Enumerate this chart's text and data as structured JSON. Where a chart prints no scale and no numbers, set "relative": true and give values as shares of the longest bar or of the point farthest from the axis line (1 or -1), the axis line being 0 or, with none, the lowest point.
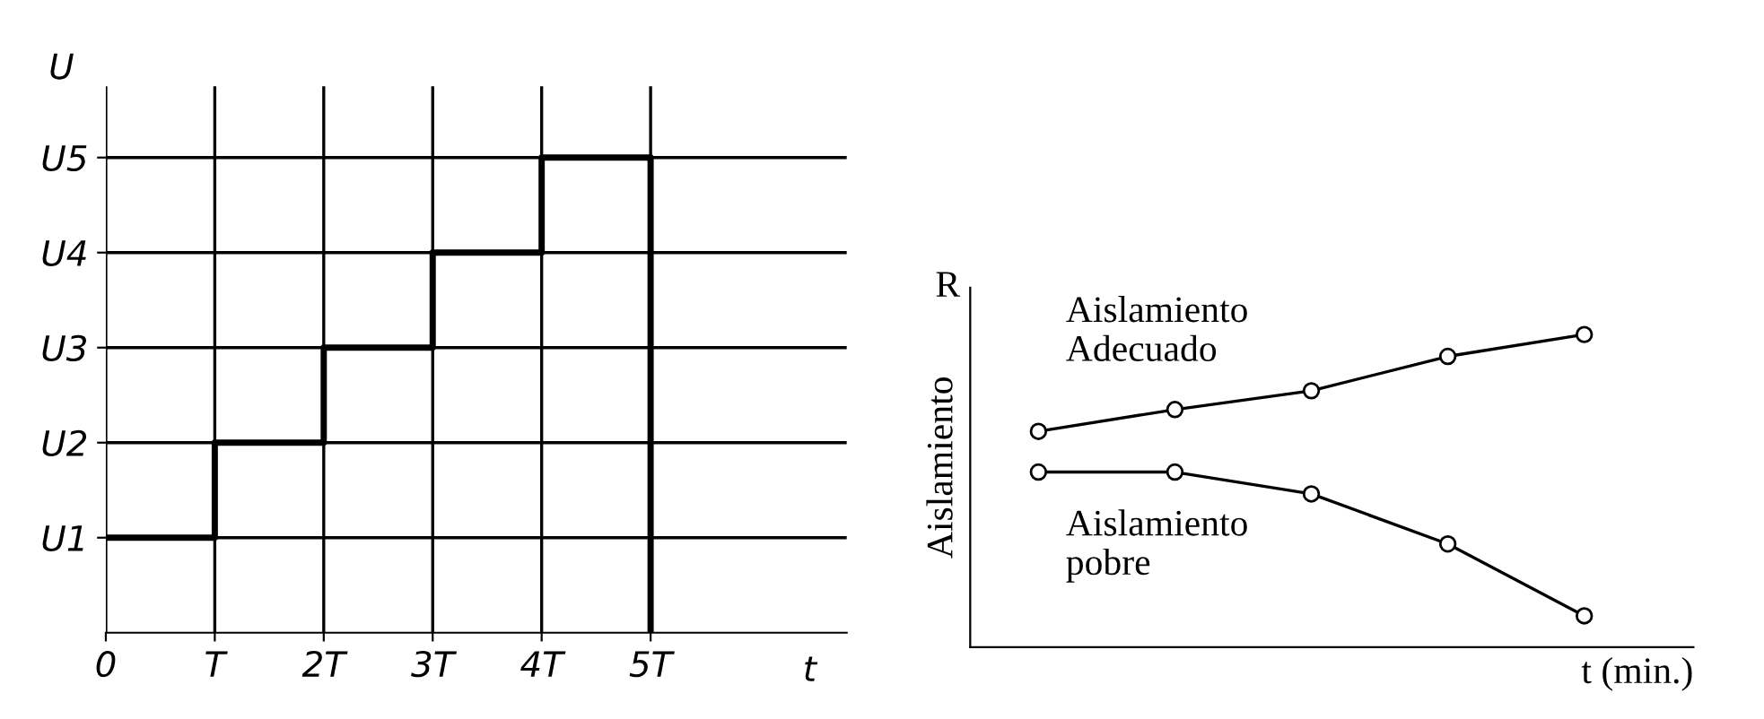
{
  "chart_data": [
    {
      "type": "step",
      "relative": true,
      "xlabel": "t",
      "ylabel": "U",
      "annotations": [
        "U1",
        "U2",
        "U3",
        "U4",
        "U5"
      ],
      "categories": [
        "0",
        "T",
        "2T",
        "3T",
        "4T",
        "5T"
      ],
      "series": [
        {
          "color": "#000000",
          "values": [
            0.2,
            0.4,
            0.6,
            0.8,
            1,
            0
          ]
        }
      ],
      "grid": true,
      "legend": false,
      "marker": "none",
      "line_style": "solid"
    },
    {
      "type": "line",
      "relative": true,
      "xlabel": "t (min.)",
      "ylabel": "Aislamiento",
      "annotations": [
        "R"
      ],
      "categories": [
        null,
        null,
        null,
        null,
        null
      ],
      "series": [
        {
          "name": "Aislamiento\nAdecuado",
          "color": "#000000",
          "values": [
            0.69,
            0.76,
            0.82,
            0.93,
            1
          ]
        },
        {
          "name": "Aislamiento\npobre",
          "color": "#000000",
          "values": [
            0.56,
            0.56,
            0.49,
            0.33,
            0.1
          ]
        }
      ],
      "grid": false,
      "legend": false,
      "marker": "circle",
      "line_style": "solid"
    }
  ]
}
